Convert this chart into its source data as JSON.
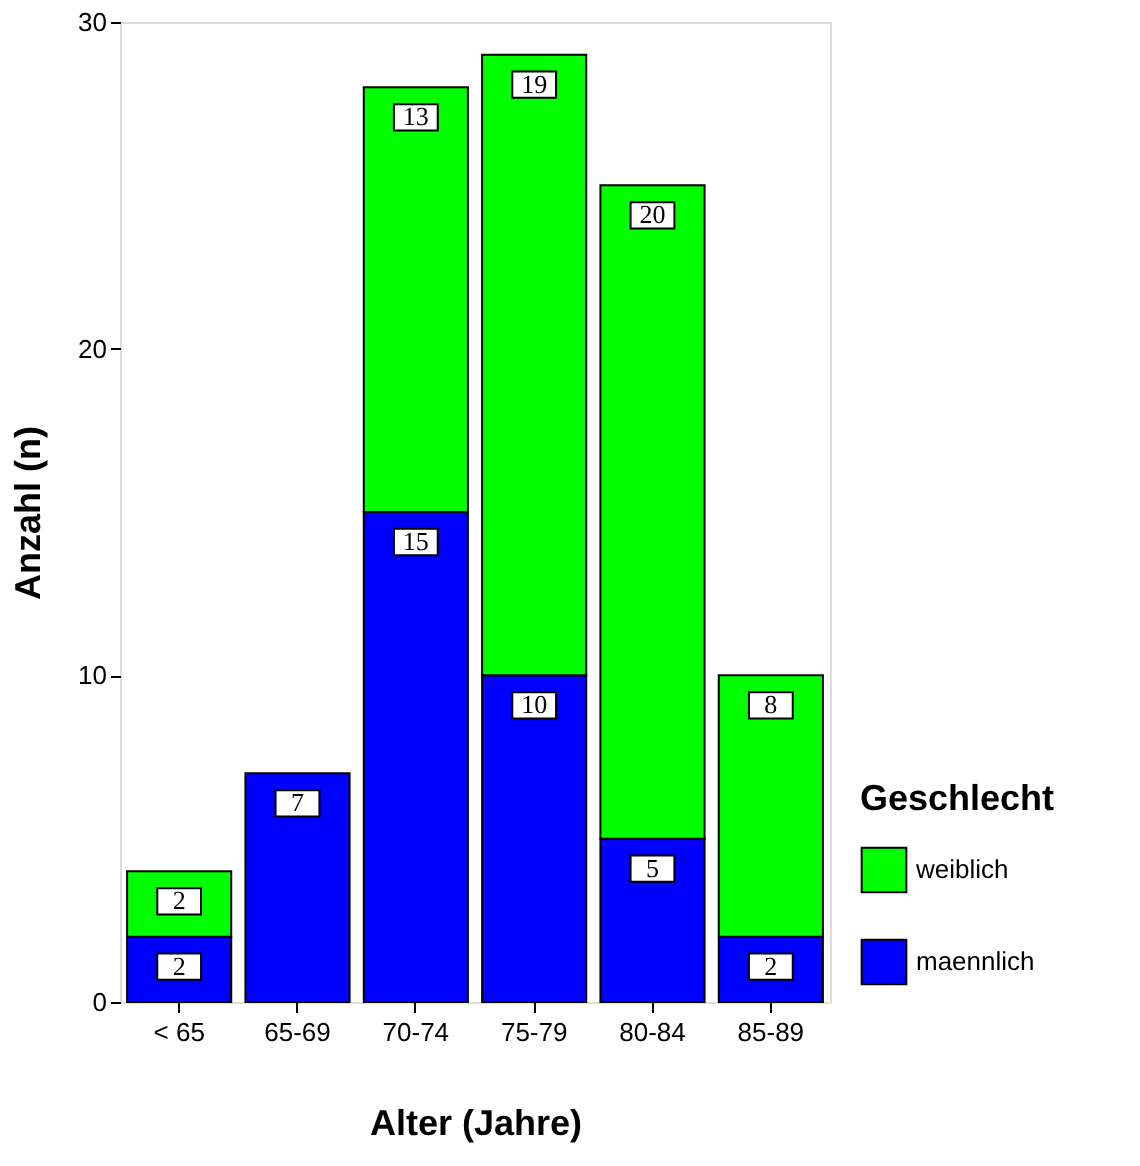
{
  "chart_data": {
    "type": "bar",
    "stacked": true,
    "xlabel": "Alter (Jahre)",
    "ylabel": "Anzahl (n)",
    "legend_title": "Geschlecht",
    "legend": "bottom right",
    "grid": false,
    "data_labels": true,
    "categories": [
      "< 65",
      "65-69",
      "70-74",
      "75-79",
      "80-84",
      "85-89"
    ],
    "ylim": [
      0,
      30
    ],
    "yticks": [
      0,
      10,
      20,
      30
    ],
    "series": [
      {
        "name": "maennlich",
        "color": "#0000ff",
        "values": [
          2,
          7,
          15,
          10,
          5,
          2
        ]
      },
      {
        "name": "weiblich",
        "color": "#00ff00",
        "values": [
          2,
          null,
          13,
          19,
          20,
          8
        ]
      }
    ]
  }
}
